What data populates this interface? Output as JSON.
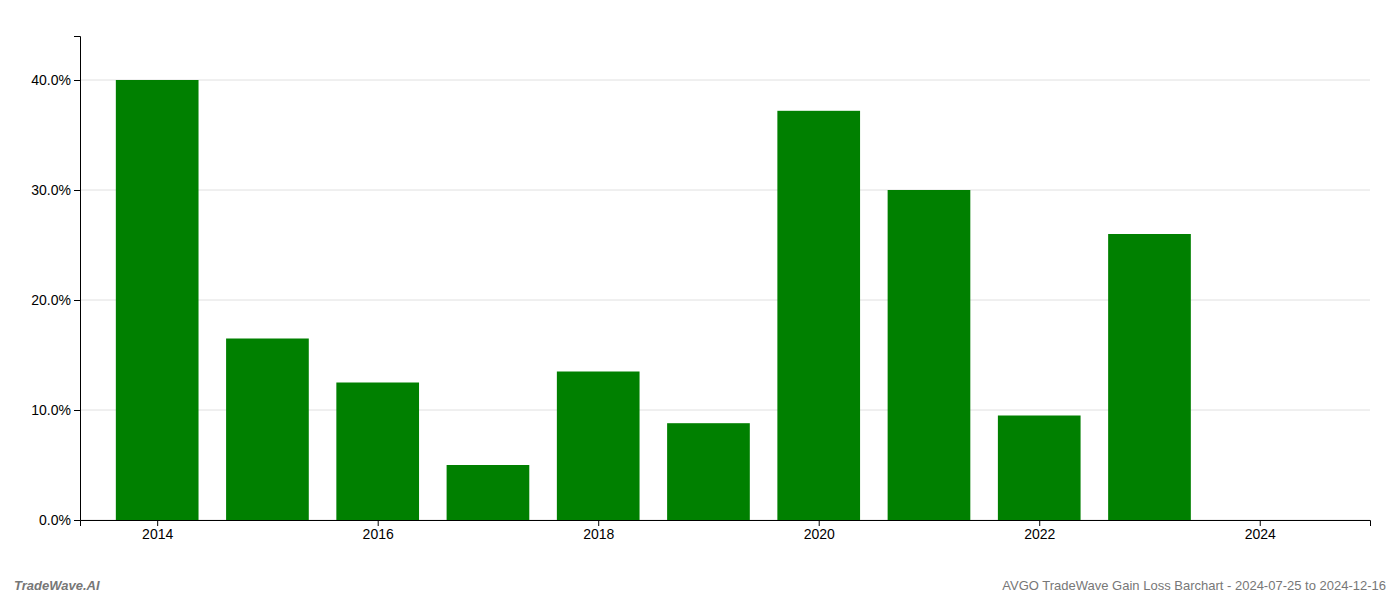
{
  "chart_data": {
    "type": "bar",
    "x": [
      2014,
      2015,
      2016,
      2017,
      2018,
      2019,
      2020,
      2021,
      2022,
      2023,
      2024
    ],
    "values": [
      0.4,
      0.165,
      0.125,
      0.05,
      0.135,
      0.088,
      0.372,
      0.3,
      0.095,
      0.26,
      0.0
    ],
    "color": "#008000",
    "xlim": [
      2013.3,
      2025.0
    ],
    "xticks": [
      2014,
      2016,
      2018,
      2020,
      2022,
      2024
    ],
    "ylim": [
      0,
      0.44
    ],
    "yticks": [
      {
        "value": 0.0,
        "label": "0.0%"
      },
      {
        "value": 0.1,
        "label": "10.0%"
      },
      {
        "value": 0.2,
        "label": "20.0%"
      },
      {
        "value": 0.3,
        "label": "30.0%"
      },
      {
        "value": 0.4,
        "label": "40.0%"
      }
    ],
    "grid": true,
    "annotations": [
      "TradeWave.AI",
      "AVGO TradeWave Gain Loss Barchart - 2024-07-25 to 2024-12-16"
    ]
  }
}
